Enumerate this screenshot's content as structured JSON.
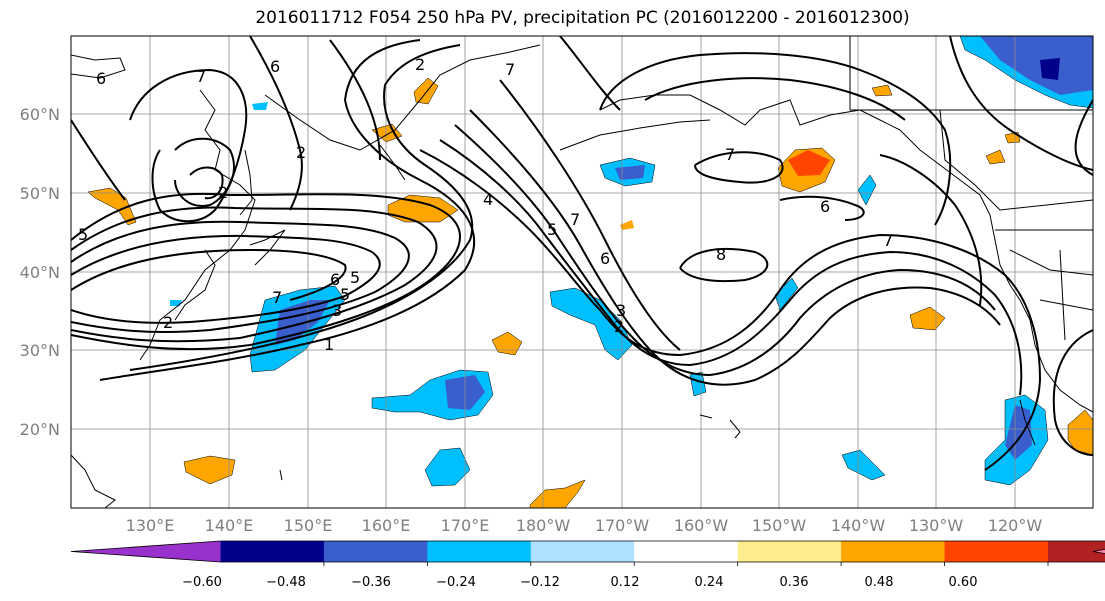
{
  "title": "2016011712 F054 250 hPa PV, precipitation PC (2016012200 - 2016012300)",
  "lat_labels": [
    "20°N",
    "30°N",
    "40°N",
    "50°N",
    "60°N"
  ],
  "lon_labels": [
    "130°E",
    "140°E",
    "150°E",
    "160°E",
    "170°E",
    "180°W",
    "170°W",
    "160°W",
    "150°W",
    "140°W",
    "130°W",
    "120°W"
  ],
  "colorbar": {
    "colors": [
      "#9932cc",
      "#00008b",
      "#3a5fcd",
      "#00bfff",
      "#b0e2ff",
      "#ffffff",
      "#ffec8b",
      "#ffa500",
      "#ff4500",
      "#b22222",
      "#ff82ab"
    ],
    "tick_labels": [
      "−0.60",
      "−0.48",
      "−0.36",
      "−0.24",
      "−0.12",
      "0.12",
      "0.24",
      "0.36",
      "0.48",
      "0.60"
    ]
  },
  "contour_labels": [
    "6",
    "7",
    "6",
    "2",
    "7",
    "2",
    "2",
    "5",
    "4",
    "5",
    "7",
    "6",
    "7",
    "8",
    "6",
    "7",
    "6",
    "5",
    "7",
    "3",
    "1",
    "5",
    "2",
    "3",
    "2"
  ]
}
